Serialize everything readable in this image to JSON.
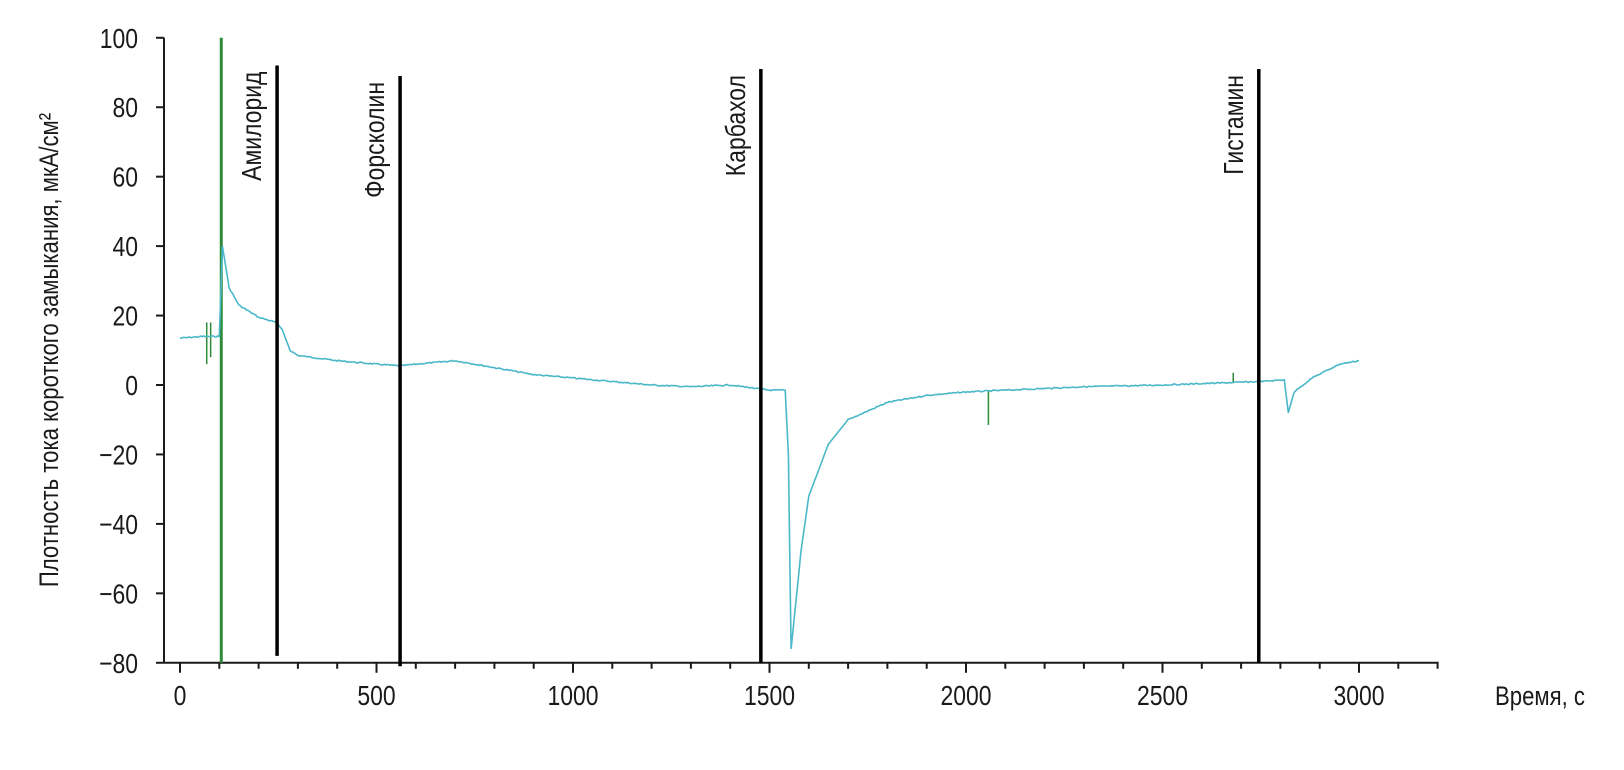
{
  "chart_data": {
    "type": "line",
    "title": "",
    "xlabel": "Время, с",
    "ylabel": "Плотность тока короткого замыкания, мкА/см²",
    "xlim": [
      0,
      3200
    ],
    "ylim": [
      -80,
      100
    ],
    "x_ticks": [
      0,
      500,
      1000,
      1500,
      2000,
      2500,
      3000
    ],
    "x_tick_labels": [
      "0",
      "500",
      "1000",
      "1500",
      "2000",
      "2500",
      "3000"
    ],
    "x_minor_step": 100,
    "y_ticks": [
      100,
      80,
      60,
      40,
      20,
      0,
      -20,
      -40,
      -60,
      -80
    ],
    "y_tick_labels": [
      "100",
      "80",
      "60",
      "40",
      "20",
      "0",
      "−20",
      "−40",
      "−60",
      "−80"
    ],
    "grid": false,
    "colors": {
      "trace": "#4ab8c8",
      "spike": "#2e8b3a",
      "event": "#000000",
      "axis": "#1a1a1a"
    },
    "series": [
      {
        "points": [
          [
            0,
            13.5
          ],
          [
            60,
            14
          ],
          [
            100,
            14
          ],
          [
            108,
            40
          ],
          [
            125,
            28
          ],
          [
            150,
            23
          ],
          [
            200,
            19.5
          ],
          [
            245,
            18
          ],
          [
            260,
            16
          ],
          [
            280,
            10
          ],
          [
            300,
            8.5
          ],
          [
            400,
            7
          ],
          [
            500,
            6
          ],
          [
            560,
            5.5
          ],
          [
            600,
            6
          ],
          [
            700,
            7
          ],
          [
            800,
            5
          ],
          [
            900,
            3
          ],
          [
            1000,
            2
          ],
          [
            1100,
            1
          ],
          [
            1200,
            0
          ],
          [
            1300,
            -0.5
          ],
          [
            1400,
            0
          ],
          [
            1500,
            -1.5
          ],
          [
            1540,
            -1.5
          ],
          [
            1548,
            -20
          ],
          [
            1555,
            -76
          ],
          [
            1565,
            -65
          ],
          [
            1580,
            -48
          ],
          [
            1600,
            -32
          ],
          [
            1650,
            -17
          ],
          [
            1700,
            -10
          ],
          [
            1800,
            -5
          ],
          [
            1900,
            -3
          ],
          [
            2000,
            -2
          ],
          [
            2100,
            -1.5
          ],
          [
            2300,
            -0.5
          ],
          [
            2500,
            0
          ],
          [
            2750,
            1
          ],
          [
            2810,
            1.5
          ],
          [
            2820,
            -8
          ],
          [
            2835,
            -2
          ],
          [
            2880,
            2
          ],
          [
            2950,
            6
          ],
          [
            3000,
            7
          ]
        ]
      }
    ],
    "spikes": [
      {
        "x": 68,
        "from": 6,
        "to": 18
      },
      {
        "x": 78,
        "from": 8,
        "to": 18
      },
      {
        "x": 105,
        "from": -80,
        "to": 100
      },
      {
        "x": 2057,
        "from": -11.5,
        "to": -1.5
      },
      {
        "x": 2680,
        "from": 0.5,
        "to": 3.5
      }
    ],
    "events": [
      {
        "label": "Амилорид",
        "x": 247,
        "top": 92,
        "bottom": -78
      },
      {
        "label": "Форсколин",
        "x": 560,
        "top": 89,
        "bottom": -81
      },
      {
        "label": "Карбахол",
        "x": 1478,
        "top": 91,
        "bottom": -80
      },
      {
        "label": "Гистамин",
        "x": 2745,
        "top": 91,
        "bottom": -80
      }
    ]
  }
}
